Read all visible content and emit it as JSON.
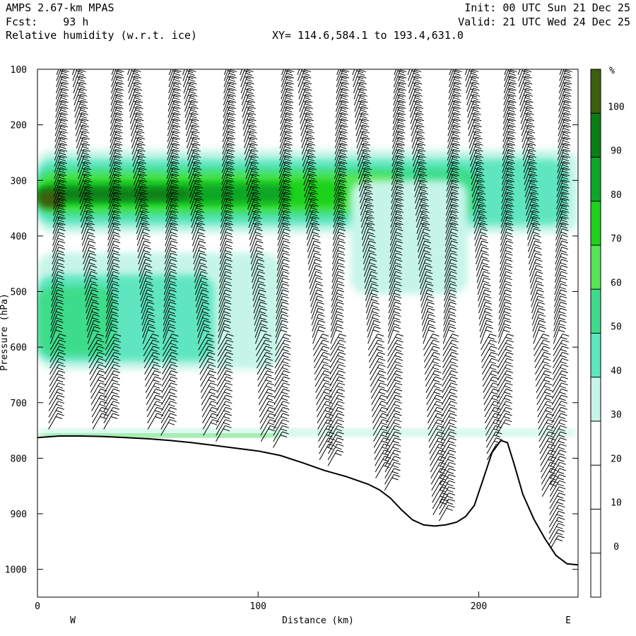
{
  "header": {
    "model": "AMPS 2.67-km MPAS",
    "fcst": "Fcst:    93 h",
    "field": "Relative humidity (w.r.t. ice)",
    "init": "Init: 00 UTC Sun 21 Dec 25",
    "valid": "Valid: 21 UTC Wed 24 Dec 25",
    "xy": "XY= 114.6,584.1 to 193.4,631.0"
  },
  "colors": {
    "levels": [
      {
        "from": 30,
        "to": 40,
        "color": "#c6f5e8"
      },
      {
        "from": 40,
        "to": 50,
        "color": "#5ee6c0"
      },
      {
        "from": 50,
        "to": 60,
        "color": "#3edc8a"
      },
      {
        "from": 60,
        "to": 70,
        "color": "#55e655"
      },
      {
        "from": 70,
        "to": 80,
        "color": "#1ed21e"
      },
      {
        "from": 80,
        "to": 90,
        "color": "#0ea628"
      },
      {
        "from": 90,
        "to": 100,
        "color": "#0a7d14"
      },
      {
        "from": 100,
        "to": 110,
        "color": "#3d5f0e"
      }
    ],
    "terrain_line": "#000000",
    "barb": "#000000"
  },
  "chart_data": {
    "type": "cross-section",
    "title": "Relative humidity (w.r.t. ice)",
    "xlabel": "Distance (km)",
    "ylabel": "Pressure (hPa)",
    "xlim": [
      0,
      245
    ],
    "ylim": [
      1050,
      100
    ],
    "x_ticks": [
      0,
      100,
      200
    ],
    "y_ticks": [
      100,
      200,
      300,
      400,
      500,
      600,
      700,
      800,
      900,
      1000
    ],
    "x_end_labels": {
      "left": "W",
      "right": "E"
    },
    "colorbar": {
      "unit": "%",
      "ticks": [
        0,
        10,
        20,
        30,
        40,
        50,
        60,
        70,
        80,
        90,
        100
      ],
      "range": [
        -10,
        110
      ]
    },
    "terrain_pressure": [
      [
        0,
        763
      ],
      [
        10,
        760
      ],
      [
        20,
        760
      ],
      [
        30,
        761
      ],
      [
        40,
        763
      ],
      [
        50,
        765
      ],
      [
        60,
        768
      ],
      [
        70,
        772
      ],
      [
        80,
        777
      ],
      [
        90,
        782
      ],
      [
        100,
        787
      ],
      [
        110,
        795
      ],
      [
        120,
        808
      ],
      [
        130,
        822
      ],
      [
        140,
        833
      ],
      [
        150,
        847
      ],
      [
        155,
        857
      ],
      [
        160,
        872
      ],
      [
        165,
        893
      ],
      [
        170,
        911
      ],
      [
        175,
        920
      ],
      [
        180,
        922
      ],
      [
        185,
        920
      ],
      [
        190,
        915
      ],
      [
        194,
        905
      ],
      [
        198,
        885
      ],
      [
        202,
        838
      ],
      [
        206,
        790
      ],
      [
        210,
        768
      ],
      [
        213,
        772
      ],
      [
        216,
        810
      ],
      [
        220,
        865
      ],
      [
        225,
        910
      ],
      [
        230,
        945
      ],
      [
        235,
        975
      ],
      [
        240,
        990
      ],
      [
        245,
        992
      ]
    ],
    "moist_layers": [
      {
        "rh": 35,
        "x0": 0,
        "x1": 245,
        "p_top": 245,
        "p_bot": 395
      },
      {
        "rh": 45,
        "x0": 0,
        "x1": 240,
        "p_top": 262,
        "p_bot": 380
      },
      {
        "rh": 55,
        "x0": 0,
        "x1": 200,
        "p_top": 278,
        "p_bot": 365
      },
      {
        "rh": 65,
        "x0": 0,
        "x1": 165,
        "p_top": 288,
        "p_bot": 355
      },
      {
        "rh": 75,
        "x0": 0,
        "x1": 140,
        "p_top": 298,
        "p_bot": 348
      },
      {
        "rh": 85,
        "x0": 0,
        "x1": 115,
        "p_top": 308,
        "p_bot": 340
      },
      {
        "rh": 95,
        "x0": 0,
        "x1": 70,
        "p_top": 315,
        "p_bot": 335
      },
      {
        "rh": 103,
        "x0": 0,
        "x1": 12,
        "p_top": 318,
        "p_bot": 350
      },
      {
        "rh": 35,
        "x0": 0,
        "x1": 110,
        "p_top": 430,
        "p_bot": 640
      },
      {
        "rh": 45,
        "x0": 0,
        "x1": 80,
        "p_top": 470,
        "p_bot": 625
      },
      {
        "rh": 55,
        "x0": 0,
        "x1": 35,
        "p_top": 490,
        "p_bot": 615
      },
      {
        "rh": 35,
        "x0": 142,
        "x1": 195,
        "p_top": 300,
        "p_bot": 505
      },
      {
        "rh": 35,
        "x0": 0,
        "x1": 245,
        "p_top": 748,
        "p_bot": 760
      },
      {
        "rh": 75,
        "x0": 0,
        "x1": 110,
        "p_top": 757,
        "p_bot": 762
      }
    ],
    "wind_barb_columns_km": [
      7,
      20,
      32,
      45,
      58,
      70,
      83,
      96,
      109,
      122,
      134,
      147,
      160,
      172,
      185,
      198,
      210,
      222,
      235
    ]
  }
}
